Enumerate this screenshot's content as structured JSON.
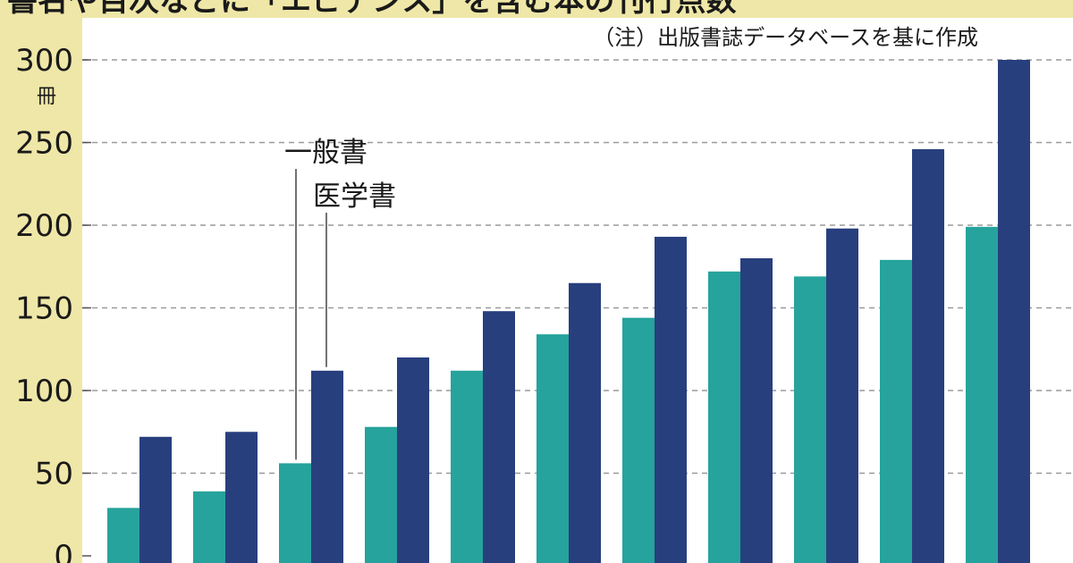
{
  "title": "書名や目次などに「エビデンス」を含む本の刊行点数",
  "note": "（注）出版書誌データベースを基に作成",
  "chart_data": {
    "type": "bar",
    "unit": "冊",
    "ylim": [
      0,
      300
    ],
    "yticks": [
      0,
      50,
      100,
      150,
      200,
      250,
      300
    ],
    "grid": true,
    "categories": [
      "",
      "",
      "",
      "",
      "",
      "",
      "",
      "",
      "",
      "",
      ""
    ],
    "series": [
      {
        "name": "一般書",
        "color": "#26a39c",
        "values": [
          29,
          39,
          56,
          78,
          112,
          134,
          144,
          172,
          169,
          179,
          199
        ]
      },
      {
        "name": "医学書",
        "color": "#283f7e",
        "values": [
          72,
          75,
          112,
          120,
          148,
          165,
          193,
          180,
          198,
          246,
          300
        ]
      }
    ]
  }
}
